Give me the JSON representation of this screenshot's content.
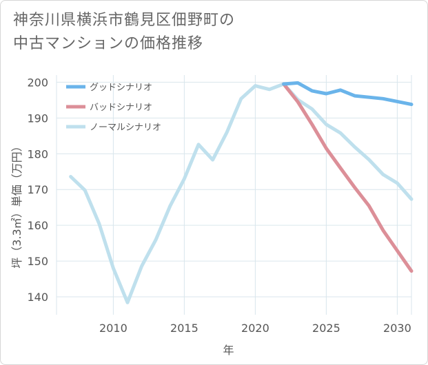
{
  "title": {
    "line1": "神奈川県横浜市鶴見区佃野町の",
    "line2": "中古マンションの価格推移"
  },
  "chart_data": {
    "type": "line",
    "xlabel": "年",
    "ylabel": "坪（3.3㎡）単価（万円）",
    "xlim": [
      2006,
      2031
    ],
    "ylim": [
      135,
      202
    ],
    "xticks": [
      2010,
      2015,
      2020,
      2025,
      2030
    ],
    "yticks": [
      140,
      150,
      160,
      170,
      180,
      190,
      200
    ],
    "grid": true,
    "legend_position": "top-left",
    "series": [
      {
        "name": "グッドシナリオ",
        "color": "#6ab4ea",
        "x": [
          2022,
          2023,
          2024,
          2025,
          2026,
          2027,
          2028,
          2029,
          2030,
          2031
        ],
        "values": [
          199.5,
          199.8,
          197.6,
          196.8,
          197.8,
          196.2,
          195.8,
          195.4,
          194.6,
          193.8
        ]
      },
      {
        "name": "バッドシナリオ",
        "color": "#dc8f98",
        "x": [
          2022,
          2023,
          2024,
          2025,
          2026,
          2027,
          2028,
          2029,
          2030,
          2031
        ],
        "values": [
          199.5,
          194.5,
          188.2,
          181.5,
          176.0,
          170.6,
          165.5,
          158.6,
          152.9,
          147.2
        ]
      },
      {
        "name": "ノーマルシナリオ",
        "color": "#bfe0ed",
        "x": [
          2007,
          2008,
          2009,
          2010,
          2011,
          2012,
          2013,
          2014,
          2015,
          2016,
          2017,
          2018,
          2019,
          2020,
          2021,
          2022,
          2023,
          2024,
          2025,
          2026,
          2027,
          2028,
          2029,
          2030,
          2031
        ],
        "values": [
          173.6,
          169.8,
          160.5,
          148.0,
          138.4,
          148.6,
          156.0,
          165.4,
          173.0,
          182.6,
          178.3,
          186.0,
          195.4,
          199.0,
          198.0,
          199.5,
          195.1,
          192.5,
          188.2,
          185.8,
          181.9,
          178.4,
          174.2,
          171.8,
          167.3
        ]
      }
    ]
  }
}
